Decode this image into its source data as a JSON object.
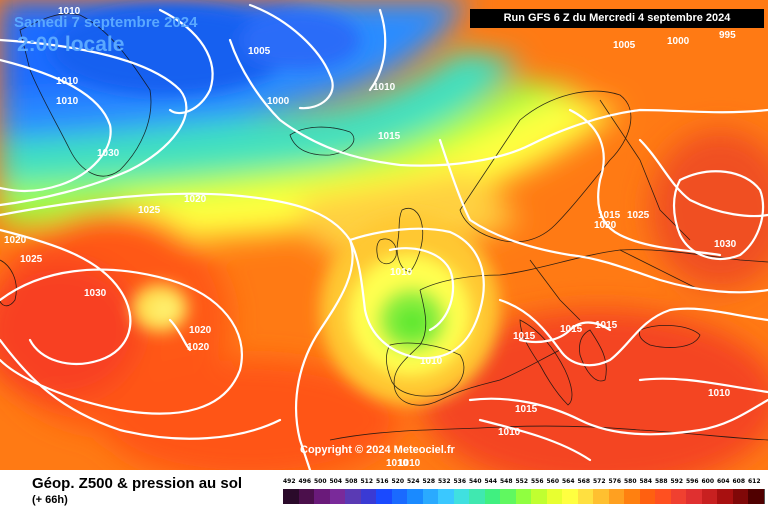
{
  "header": {
    "date_label": "Samedi 7 septembre 2024",
    "time_label": "2:00 locale",
    "run_label": "Run GFS 6 Z du Mercredi 4 septembre 2024"
  },
  "copyright": "Copyright © 2024 Meteociel.fr",
  "legend": {
    "title": "Géop. Z500 & pression au sol",
    "subtitle": "(+ 66h)",
    "values": [
      "492",
      "496",
      "500",
      "504",
      "508",
      "512",
      "516",
      "520",
      "524",
      "528",
      "532",
      "536",
      "540",
      "544",
      "548",
      "552",
      "556",
      "560",
      "564",
      "568",
      "572",
      "576",
      "580",
      "584",
      "588",
      "592",
      "596",
      "600",
      "604",
      "608",
      "612"
    ],
    "colors": [
      "#2a0a2a",
      "#4b0f4b",
      "#6a1a7a",
      "#7a2a9a",
      "#5a3ab4",
      "#3a3ad4",
      "#1a4aff",
      "#1a6aff",
      "#1a8aff",
      "#2aaaff",
      "#3ac8ff",
      "#40e0e0",
      "#40e8b0",
      "#40f080",
      "#60f860",
      "#90ff40",
      "#c0ff30",
      "#e8ff30",
      "#ffff40",
      "#ffe040",
      "#ffc030",
      "#ffa020",
      "#ff8010",
      "#ff6010",
      "#ff5020",
      "#f04030",
      "#e03030",
      "#c82020",
      "#a81010",
      "#800808",
      "#500000"
    ]
  },
  "isobar_labels": [
    "1010",
    "1005",
    "1010",
    "1010",
    "1000",
    "1010",
    "1030",
    "1015",
    "1025",
    "1020",
    "1020",
    "1025",
    "1030",
    "1010",
    "1020",
    "1020",
    "1010",
    "1015",
    "1015",
    "1015",
    "1015",
    "1010",
    "1015",
    "1010",
    "1005",
    "1000",
    "995",
    "1025",
    "1020",
    "1030",
    "1010",
    "1010"
  ]
}
